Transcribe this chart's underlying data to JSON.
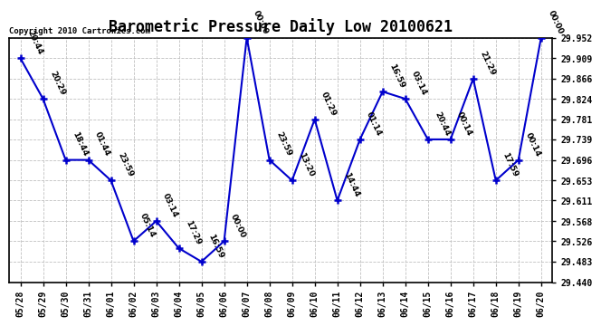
{
  "title": "Barometric Pressure Daily Low 20100621",
  "copyright": "Copyright 2010 Cartronics.com",
  "x_labels": [
    "05/28",
    "05/29",
    "05/30",
    "05/31",
    "06/01",
    "06/02",
    "06/03",
    "06/04",
    "06/05",
    "06/06",
    "06/07",
    "06/08",
    "06/09",
    "06/10",
    "06/11",
    "06/12",
    "06/13",
    "06/14",
    "06/15",
    "06/16",
    "06/17",
    "06/18",
    "06/19",
    "06/20"
  ],
  "y_values": [
    29.909,
    29.824,
    29.696,
    29.696,
    29.653,
    29.526,
    29.568,
    29.511,
    29.483,
    29.526,
    29.952,
    29.696,
    29.653,
    29.781,
    29.611,
    29.739,
    29.839,
    29.824,
    29.739,
    29.739,
    29.866,
    29.653,
    29.696,
    29.952
  ],
  "point_labels": [
    "20:44",
    "20:29",
    "18:44",
    "01:44",
    "23:59",
    "05:14",
    "03:14",
    "17:29",
    "16:59",
    "00:00",
    "00:00",
    "23:59",
    "13:20",
    "01:29",
    "14:44",
    "01:14",
    "16:59",
    "03:14",
    "20:44",
    "00:14",
    "21:29",
    "17:59",
    "00:14",
    "00:00"
  ],
  "ylim": [
    29.44,
    29.952
  ],
  "y_ticks": [
    29.44,
    29.483,
    29.526,
    29.568,
    29.611,
    29.653,
    29.696,
    29.739,
    29.781,
    29.824,
    29.866,
    29.909,
    29.952
  ],
  "line_color": "#0000cc",
  "marker_color": "#0000cc",
  "bg_color": "#ffffff",
  "grid_color": "#c0c0c0",
  "title_fontsize": 12,
  "label_fontsize": 7,
  "point_label_fontsize": 6.5
}
